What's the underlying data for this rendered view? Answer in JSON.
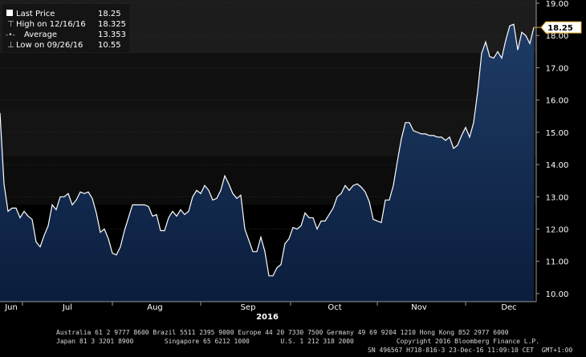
{
  "chart_data": {
    "type": "area",
    "year_label": "2016",
    "x_labels": [
      "Jun",
      "Jul",
      "Aug",
      "Sep",
      "Oct",
      "Nov",
      "Dec"
    ],
    "y_ticks": [
      "10.00",
      "11.00",
      "12.00",
      "13.00",
      "14.00",
      "15.00",
      "16.00",
      "17.00",
      "18.00",
      "19.00"
    ],
    "ylim": [
      9.75,
      19.1
    ],
    "last_value_label": "18.25",
    "legend": [
      {
        "label": "Last Price",
        "value": "18.25"
      },
      {
        "label": "High on 12/16/16",
        "value": "18.325"
      },
      {
        "label": "Average",
        "value": "13.353"
      },
      {
        "label": "Low on 09/26/16",
        "value": "10.55"
      }
    ],
    "series": [
      {
        "values": [
          15.6,
          13.4,
          12.55,
          12.65,
          12.65,
          12.35,
          12.55,
          12.4,
          12.3,
          11.6,
          11.45,
          11.8,
          12.1,
          12.75,
          12.6,
          13.0,
          13.0,
          13.1,
          12.75,
          12.9,
          13.15,
          13.1,
          13.15,
          12.95,
          12.5,
          11.9,
          12.0,
          11.7,
          11.25,
          11.2,
          11.45,
          11.95,
          12.35,
          12.75,
          12.75,
          12.75,
          12.75,
          12.7,
          12.4,
          12.45,
          11.95,
          11.95,
          12.35,
          12.55,
          12.4,
          12.6,
          12.45,
          12.55,
          13.0,
          13.2,
          13.1,
          13.35,
          13.2,
          12.9,
          12.95,
          13.2,
          13.65,
          13.4,
          13.1,
          12.95,
          13.05,
          12.0,
          11.65,
          11.3,
          11.3,
          11.75,
          11.3,
          10.55,
          10.55,
          10.8,
          10.9,
          11.55,
          11.7,
          12.05,
          12.0,
          12.1,
          12.5,
          12.35,
          12.35,
          12.0,
          12.25,
          12.25,
          12.45,
          12.65,
          13.0,
          13.1,
          13.35,
          13.2,
          13.35,
          13.4,
          13.3,
          13.15,
          12.85,
          12.3,
          12.25,
          12.2,
          12.9,
          12.9,
          13.35,
          14.1,
          14.8,
          15.3,
          15.3,
          15.05,
          15.0,
          14.95,
          14.95,
          14.9,
          14.9,
          14.85,
          14.85,
          14.75,
          14.85,
          14.5,
          14.6,
          14.9,
          15.15,
          14.85,
          15.3,
          16.25,
          17.45,
          17.8,
          17.35,
          17.3,
          17.5,
          17.3,
          17.85,
          18.3,
          18.35,
          17.55,
          18.1,
          18.0,
          17.75,
          18.25
        ]
      }
    ],
    "line_color": "#ffffff",
    "fill_color_top": "#1e3c66",
    "fill_color_bottom": "#0b1d3c",
    "last_marker_color": "#e0a82a",
    "background": "#000000"
  },
  "footer": {
    "line1": "Australia 61 2 9777 8600 Brazil 5511 2395 9000 Europe 44 20 7330 7500 Germany 49 69 9204 1210 Hong Kong 852 2977 6000",
    "line2": "Japan 81 3 3201 8900        Singapore 65 6212 1000        U.S. 1 212 318 2000           Copyright 2016 Bloomberg Finance L.P.",
    "line3": "SN 496567 H718-816-3 23-Dec-16 11:09:10 CET  GMT+1:00"
  }
}
